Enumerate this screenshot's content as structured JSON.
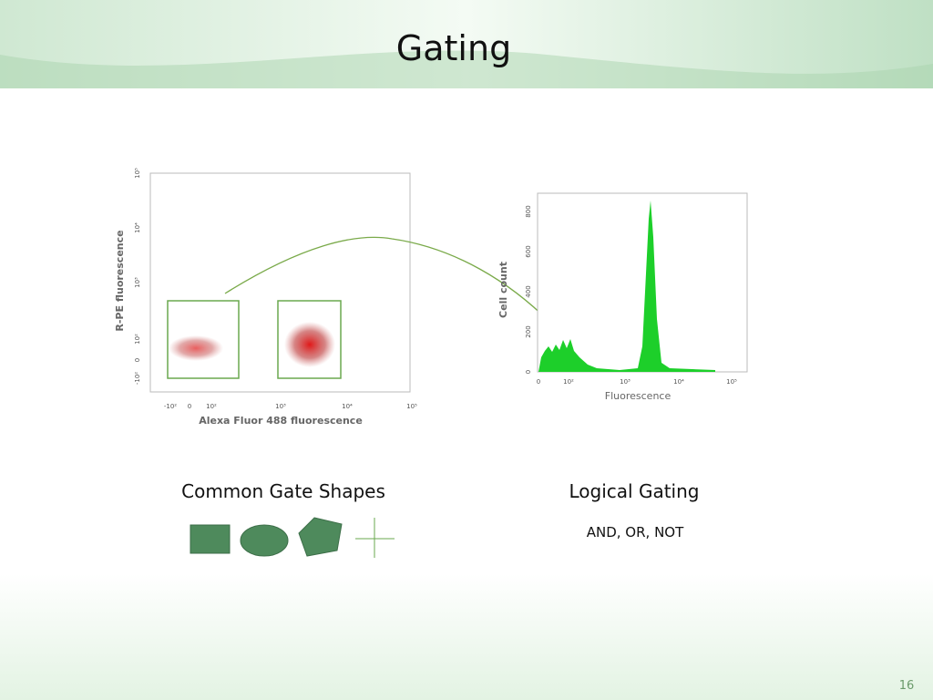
{
  "title": "Gating",
  "scatter_plot": {
    "y_axis_title": "R-PE fluorescence",
    "x_axis_title": "Alexa Fluor 488 fluorescence",
    "y_tick_labels": [
      "10⁵",
      "10⁴",
      "10³",
      "10²",
      "0",
      "-10²"
    ],
    "x_tick_labels": [
      "-10²",
      "0",
      "10²",
      "10³",
      "10⁴",
      "10⁵"
    ]
  },
  "histogram": {
    "y_axis_title": "Cell count",
    "x_axis_title": "Fluorescence",
    "y_tick_labels": [
      "0",
      "200",
      "400",
      "600",
      "800"
    ],
    "x_tick_labels": [
      "0",
      "10²",
      "10³",
      "10⁴",
      "10⁵"
    ]
  },
  "gate_shapes": {
    "heading": "Common Gate Shapes"
  },
  "logical_gating": {
    "heading": "Logical Gating",
    "text": "AND, OR, NOT"
  },
  "page_number": "16"
}
